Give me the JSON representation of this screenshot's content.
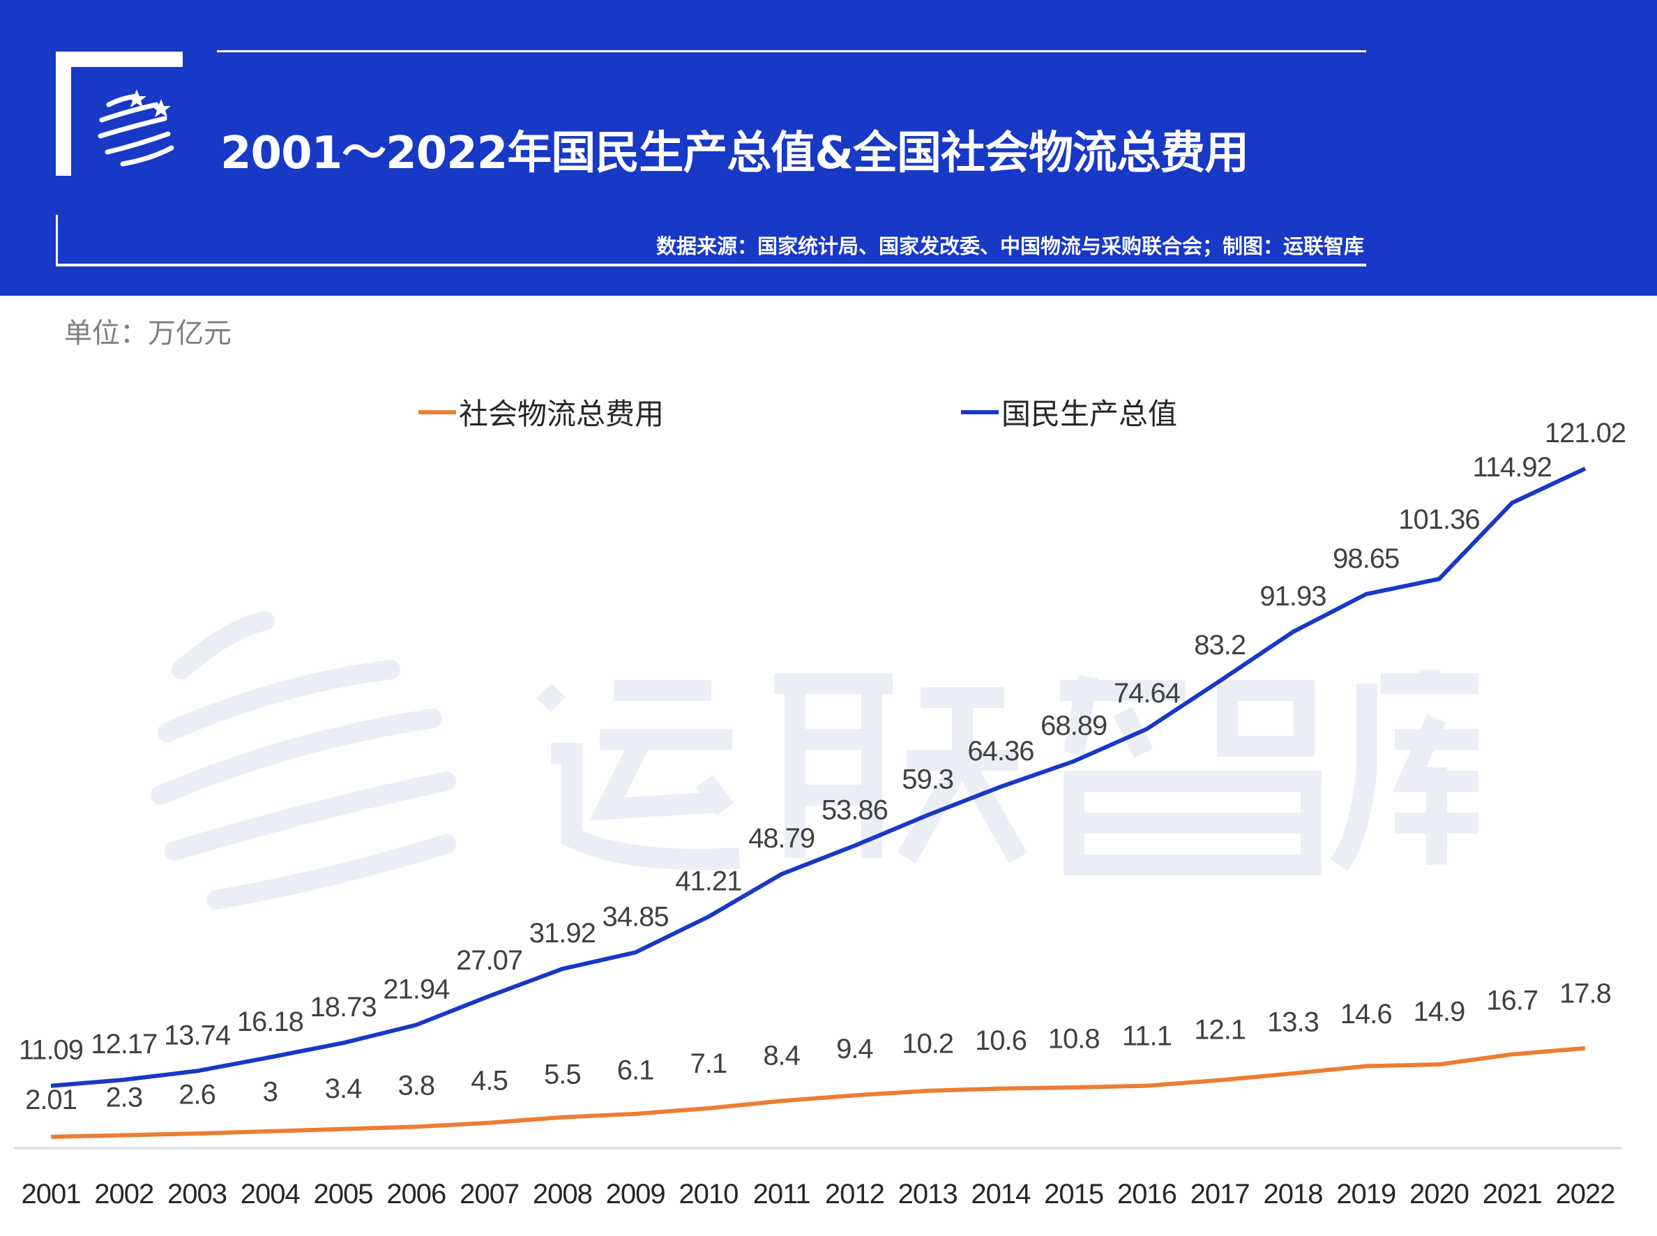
{
  "header": {
    "title": "2001～2022年国民生产总值&全国社会物流总费用",
    "source": "数据来源：国家统计局、国家发改委、中国物流与采购联合会；制图：运联智库",
    "logo_icon": "stars-globe-logo-icon"
  },
  "unit": "单位：万亿元",
  "watermark": "运联智库",
  "colors": {
    "header_bg": "#1838c6",
    "gdp": "#1838c6",
    "logistics": "#ed7d31"
  },
  "chart_data": {
    "type": "line",
    "title": "2001～2022年国民生产总值&全国社会物流总费用",
    "xlabel": "",
    "ylabel": "单位：万亿元",
    "categories": [
      "2001",
      "2002",
      "2003",
      "2004",
      "2005",
      "2006",
      "2007",
      "2008",
      "2009",
      "2010",
      "2011",
      "2012",
      "2013",
      "2014",
      "2015",
      "2016",
      "2017",
      "2018",
      "2019",
      "2020",
      "2021",
      "2022"
    ],
    "legend_position": "top",
    "grid": false,
    "ylim": [
      0,
      125
    ],
    "series": [
      {
        "name": "社会物流总费用",
        "color": "#ed7d31",
        "values": [
          2.01,
          2.3,
          2.6,
          3,
          3.4,
          3.8,
          4.5,
          5.5,
          6.1,
          7.1,
          8.4,
          9.4,
          10.2,
          10.6,
          10.8,
          11.1,
          12.1,
          13.3,
          14.6,
          14.9,
          16.7,
          17.8
        ]
      },
      {
        "name": "国民生产总值",
        "color": "#1838c6",
        "values": [
          11.09,
          12.17,
          13.74,
          16.18,
          18.73,
          21.94,
          27.07,
          31.92,
          34.85,
          41.21,
          48.79,
          53.86,
          59.3,
          64.36,
          68.89,
          74.64,
          83.2,
          91.93,
          98.65,
          101.36,
          114.92,
          121.02
        ]
      }
    ]
  }
}
